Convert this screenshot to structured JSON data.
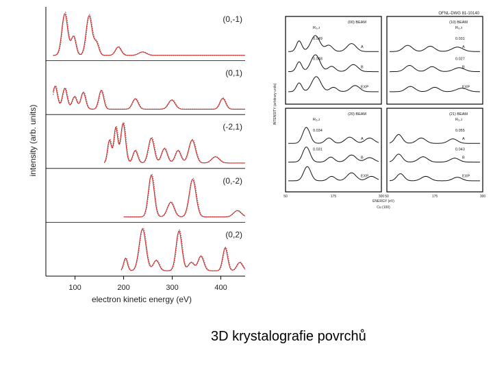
{
  "caption": "3D krystalografie povrchů",
  "colors": {
    "experiment": "#7a7a7a",
    "theory": "#d42020",
    "frame": "#000000"
  },
  "chart_data": [
    {
      "type": "line",
      "xlabel": "electron kinetic energy (eV)",
      "ylabel": "intensity (arb. units)",
      "xlim": [
        40,
        450
      ],
      "x_ticks": [
        100,
        200,
        300,
        400
      ],
      "x_tick_labels": [
        "100",
        "200",
        "300",
        "400"
      ],
      "legend": "none",
      "grid": false,
      "panels": [
        {
          "label": "(0,-1)",
          "x_range": [
            55,
            450
          ],
          "peaks": [
            [
              80,
              1.0,
              6
            ],
            [
              98,
              0.45,
              5
            ],
            [
              130,
              0.95,
              6
            ],
            [
              145,
              0.3,
              5
            ],
            [
              190,
              0.2,
              6
            ],
            [
              240,
              0.08,
              8
            ]
          ]
        },
        {
          "label": "(0,1)",
          "x_range": [
            55,
            450
          ],
          "peaks": [
            [
              60,
              0.55,
              5
            ],
            [
              80,
              0.5,
              5
            ],
            [
              100,
              0.3,
              5
            ],
            [
              118,
              0.4,
              5
            ],
            [
              155,
              0.45,
              5
            ],
            [
              225,
              0.25,
              6
            ],
            [
              300,
              0.22,
              7
            ],
            [
              405,
              0.26,
              6
            ]
          ]
        },
        {
          "label": "(-2,1)",
          "x_range": [
            160,
            450
          ],
          "peaks": [
            [
              172,
              0.55,
              4
            ],
            [
              185,
              0.85,
              4
            ],
            [
              200,
              0.95,
              5
            ],
            [
              225,
              0.3,
              5
            ],
            [
              258,
              0.6,
              6
            ],
            [
              285,
              0.35,
              6
            ],
            [
              313,
              0.3,
              6
            ],
            [
              342,
              0.55,
              7
            ],
            [
              390,
              0.15,
              8
            ]
          ]
        },
        {
          "label": "(0,-2)",
          "x_range": [
            200,
            450
          ],
          "peaks": [
            [
              258,
              1.0,
              6
            ],
            [
              298,
              0.35,
              7
            ],
            [
              343,
              0.9,
              7
            ],
            [
              435,
              0.15,
              8
            ]
          ]
        },
        {
          "label": "(0,2)",
          "x_range": [
            195,
            450
          ],
          "peaks": [
            [
              205,
              0.3,
              4
            ],
            [
              240,
              1.0,
              7
            ],
            [
              268,
              0.25,
              6
            ],
            [
              315,
              0.95,
              6
            ],
            [
              340,
              0.2,
              6
            ],
            [
              360,
              0.35,
              6
            ],
            [
              410,
              0.55,
              5
            ],
            [
              440,
              0.2,
              6
            ]
          ]
        }
      ]
    },
    {
      "type": "line",
      "title": "Cu (100)",
      "xlabel": "ENERGY (eV)",
      "ylabel": "INTENSITY (arbitrary units)",
      "header": "OFNL-DWG 81-10140",
      "legend": "none",
      "grid": false,
      "panels": [
        {
          "name": "(00) BEAM",
          "r_label": "R₂,ᴊ",
          "curves": [
            {
              "label": "A",
              "r_value": "0.049",
              "peaks": [
                [
                  0.12,
                  0.6,
                  0.03
                ],
                [
                  0.3,
                  0.9,
                  0.05
                ],
                [
                  0.45,
                  0.35,
                  0.04
                ],
                [
                  0.7,
                  0.45,
                  0.05
                ]
              ]
            },
            {
              "label": "B",
              "r_value": "0.048",
              "peaks": [
                [
                  0.12,
                  0.55,
                  0.03
                ],
                [
                  0.3,
                  0.95,
                  0.05
                ],
                [
                  0.48,
                  0.3,
                  0.04
                ],
                [
                  0.72,
                  0.4,
                  0.05
                ]
              ]
            },
            {
              "label": "EXP",
              "peaks": [
                [
                  0.12,
                  0.5,
                  0.03
                ],
                [
                  0.31,
                  0.85,
                  0.05
                ],
                [
                  0.5,
                  0.25,
                  0.04
                ],
                [
                  0.74,
                  0.35,
                  0.05
                ]
              ]
            }
          ]
        },
        {
          "name": "(10) BEAM",
          "r_label": "R₂,ᴊ",
          "curves": [
            {
              "label": "A",
              "r_value": "0.031",
              "peaks": [
                [
                  0.2,
                  0.35,
                  0.05
                ],
                [
                  0.45,
                  0.3,
                  0.05
                ],
                [
                  0.75,
                  0.25,
                  0.06
                ]
              ]
            },
            {
              "label": "B",
              "r_value": "0.027",
              "peaks": [
                [
                  0.22,
                  0.35,
                  0.05
                ],
                [
                  0.47,
                  0.28,
                  0.05
                ],
                [
                  0.77,
                  0.22,
                  0.06
                ]
              ]
            },
            {
              "label": "EXP",
              "peaks": [
                [
                  0.23,
                  0.3,
                  0.05
                ],
                [
                  0.5,
                  0.25,
                  0.05
                ],
                [
                  0.8,
                  0.2,
                  0.06
                ]
              ]
            }
          ]
        },
        {
          "name": "(20) BEAM",
          "r_label": "R₂,ᴊ",
          "curves": [
            {
              "label": "A",
              "r_value": "0.034",
              "peaks": [
                [
                  0.2,
                  0.9,
                  0.04
                ],
                [
                  0.45,
                  0.3,
                  0.04
                ],
                [
                  0.68,
                  0.35,
                  0.05
                ],
                [
                  0.9,
                  0.3,
                  0.05
                ]
              ]
            },
            {
              "label": "B",
              "r_value": "0.031",
              "peaks": [
                [
                  0.2,
                  0.85,
                  0.04
                ],
                [
                  0.47,
                  0.28,
                  0.04
                ],
                [
                  0.7,
                  0.4,
                  0.05
                ],
                [
                  0.9,
                  0.25,
                  0.05
                ]
              ]
            },
            {
              "label": "EXP",
              "peaks": [
                [
                  0.21,
                  0.8,
                  0.04
                ],
                [
                  0.48,
                  0.25,
                  0.04
                ],
                [
                  0.7,
                  0.45,
                  0.05
                ],
                [
                  0.92,
                  0.25,
                  0.05
                ]
              ]
            }
          ]
        },
        {
          "name": "(21) BEAM",
          "r_label": "R₂,ᴊ",
          "curves": [
            {
              "label": "A",
              "r_value": "0.055",
              "peaks": [
                [
                  0.1,
                  0.5,
                  0.04
                ],
                [
                  0.35,
                  0.3,
                  0.05
                ],
                [
                  0.7,
                  0.25,
                  0.05
                ]
              ]
            },
            {
              "label": "B",
              "r_value": "0.043",
              "peaks": [
                [
                  0.1,
                  0.45,
                  0.04
                ],
                [
                  0.37,
                  0.3,
                  0.05
                ],
                [
                  0.72,
                  0.22,
                  0.05
                ]
              ]
            },
            {
              "label": "EXP",
              "peaks": [
                [
                  0.12,
                  0.4,
                  0.04
                ],
                [
                  0.4,
                  0.25,
                  0.05
                ],
                [
                  0.75,
                  0.2,
                  0.05
                ]
              ]
            }
          ]
        }
      ],
      "x_tick_labels_left": [
        "50",
        "175",
        "300"
      ],
      "x_tick_labels_right": [
        "50",
        "175",
        "300"
      ]
    }
  ]
}
